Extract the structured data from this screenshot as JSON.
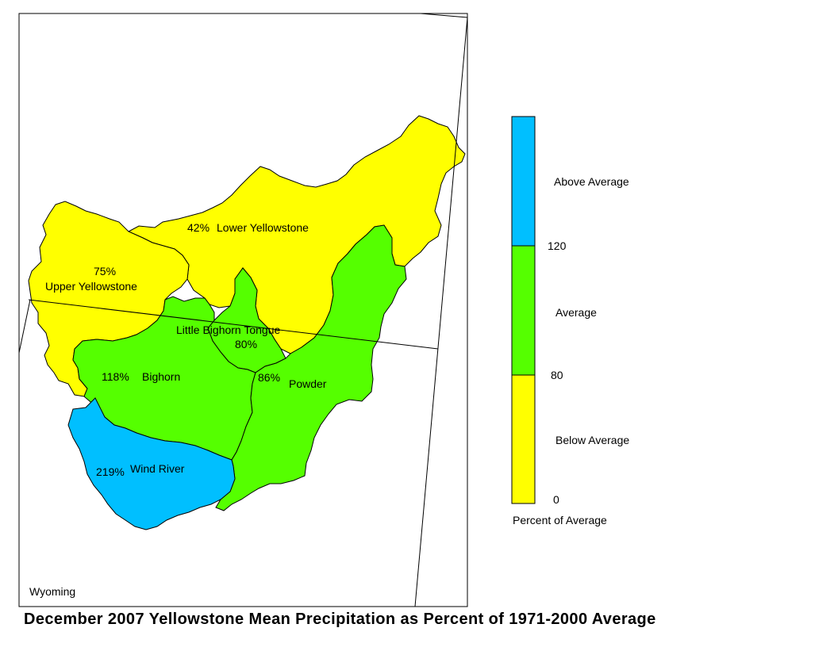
{
  "title": "December 2007 Yellowstone Mean Precipitation as Percent of 1971-2000 Average",
  "map": {
    "state_label": "Wyoming",
    "basins": [
      {
        "name": "Lower Yellowstone",
        "percent": "42%",
        "category": "Below Average",
        "color": "#FFFF00"
      },
      {
        "name": "Upper Yellowstone",
        "percent": "75%",
        "category": "Below Average",
        "color": "#FFFF00"
      },
      {
        "name": "Little Bighorn Tongue",
        "percent": "80%",
        "category": "Average",
        "color": "#55FF00"
      },
      {
        "name": "Bighorn",
        "percent": "118%",
        "category": "Average",
        "color": "#55FF00"
      },
      {
        "name": "Powder",
        "percent": "86%",
        "category": "Average",
        "color": "#55FF00"
      },
      {
        "name": "Wind River",
        "percent": "219%",
        "category": "Above Average",
        "color": "#00BFFF"
      }
    ]
  },
  "legend": {
    "title": "Percent of Average",
    "categories": [
      {
        "label": "Above Average",
        "color": "#00BFFF"
      },
      {
        "label": "Average",
        "color": "#55FF00"
      },
      {
        "label": "Below Average",
        "color": "#FFFF00"
      }
    ],
    "ticks": [
      "120",
      "80",
      "0"
    ]
  }
}
